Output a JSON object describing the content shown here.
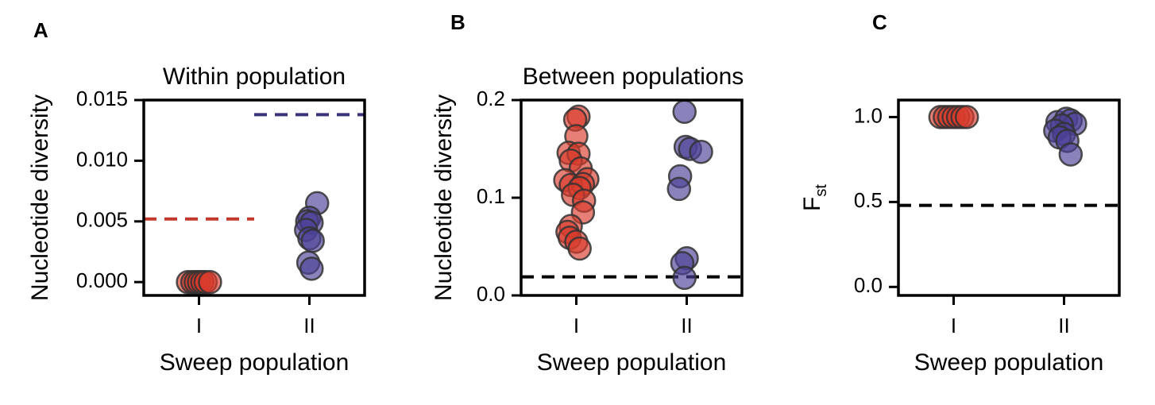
{
  "chart_data": [
    {
      "panel_label": "A",
      "type": "scatter",
      "title": "Within population",
      "xlabel": "Sweep population",
      "ylabel": "Nucleotide diversity",
      "categories": [
        "I",
        "II"
      ],
      "ylim": [
        -0.0011,
        0.015
      ],
      "yticks": [
        "0.000",
        "0.005",
        "0.010",
        "0.015"
      ],
      "ytick_values": [
        0.0,
        0.005,
        0.01,
        0.015
      ],
      "grid": false,
      "series": [
        {
          "category": "I",
          "color": "#d93a2b",
          "points": [
            {
              "dx": -0.1,
              "y": 0.0
            },
            {
              "dx": -0.06,
              "y": 0.0
            },
            {
              "dx": -0.03,
              "y": 0.0
            },
            {
              "dx": 0.0,
              "y": 0.0
            },
            {
              "dx": 0.03,
              "y": 0.0
            },
            {
              "dx": 0.06,
              "y": 0.0
            },
            {
              "dx": 0.1,
              "y": 0.0
            }
          ]
        },
        {
          "category": "II",
          "color": "#4b4196",
          "points": [
            {
              "dx": 0.07,
              "y": 0.0065
            },
            {
              "dx": 0.0,
              "y": 0.0053
            },
            {
              "dx": -0.02,
              "y": 0.005
            },
            {
              "dx": 0.02,
              "y": 0.0049
            },
            {
              "dx": -0.03,
              "y": 0.0043
            },
            {
              "dx": 0.0,
              "y": 0.0036
            },
            {
              "dx": 0.03,
              "y": 0.0034
            },
            {
              "dx": -0.01,
              "y": 0.0016
            },
            {
              "dx": 0.02,
              "y": 0.0011
            }
          ]
        }
      ],
      "reference_lines": [
        {
          "y": 0.0052,
          "x_from": 0.5,
          "x_to": 1.5,
          "color": "#c0392b",
          "style": "dashed"
        },
        {
          "y": 0.0138,
          "x_from": 1.5,
          "x_to": 2.5,
          "color": "#3b337a",
          "style": "dashed"
        }
      ]
    },
    {
      "panel_label": "B",
      "type": "scatter",
      "title": "Between populations",
      "xlabel": "Sweep population",
      "ylabel": "Nucleotide diversity",
      "categories": [
        "I",
        "II"
      ],
      "ylim": [
        0.0,
        0.2
      ],
      "yticks": [
        "0.0",
        "0.1",
        "0.2"
      ],
      "ytick_values": [
        0.0,
        0.1,
        0.2
      ],
      "grid": false,
      "series": [
        {
          "category": "I",
          "color": "#d93a2b",
          "points": [
            {
              "dx": 0.02,
              "y": 0.183
            },
            {
              "dx": -0.01,
              "y": 0.18
            },
            {
              "dx": 0.0,
              "y": 0.163
            },
            {
              "dx": -0.07,
              "y": 0.146
            },
            {
              "dx": 0.02,
              "y": 0.145
            },
            {
              "dx": -0.05,
              "y": 0.138
            },
            {
              "dx": 0.04,
              "y": 0.13
            },
            {
              "dx": -0.1,
              "y": 0.118
            },
            {
              "dx": 0.1,
              "y": 0.119
            },
            {
              "dx": -0.05,
              "y": 0.113
            },
            {
              "dx": 0.06,
              "y": 0.114
            },
            {
              "dx": 0.03,
              "y": 0.11
            },
            {
              "dx": -0.03,
              "y": 0.103
            },
            {
              "dx": 0.07,
              "y": 0.097
            },
            {
              "dx": 0.06,
              "y": 0.085
            },
            {
              "dx": -0.05,
              "y": 0.071
            },
            {
              "dx": -0.08,
              "y": 0.065
            },
            {
              "dx": -0.06,
              "y": 0.059
            },
            {
              "dx": 0.0,
              "y": 0.055
            },
            {
              "dx": 0.03,
              "y": 0.048
            }
          ]
        },
        {
          "category": "II",
          "color": "#4b4196",
          "points": [
            {
              "dx": -0.02,
              "y": 0.188
            },
            {
              "dx": -0.01,
              "y": 0.152
            },
            {
              "dx": 0.03,
              "y": 0.15
            },
            {
              "dx": 0.13,
              "y": 0.147
            },
            {
              "dx": -0.06,
              "y": 0.122
            },
            {
              "dx": -0.07,
              "y": 0.109
            },
            {
              "dx": 0.0,
              "y": 0.038
            },
            {
              "dx": -0.04,
              "y": 0.033
            },
            {
              "dx": -0.02,
              "y": 0.018
            }
          ]
        }
      ],
      "reference_lines": [
        {
          "y": 0.019,
          "x_from": 0.5,
          "x_to": 2.5,
          "color": "#000000",
          "style": "dashed"
        }
      ]
    },
    {
      "panel_label": "C",
      "type": "scatter",
      "title": "",
      "xlabel": "Sweep population",
      "ylabel": "F",
      "ylabel_subscript": "st",
      "categories": [
        "I",
        "II"
      ],
      "ylim": [
        -0.05,
        1.1
      ],
      "yticks": [
        "0.0",
        "0.5",
        "1.0"
      ],
      "ytick_values": [
        0.0,
        0.5,
        1.0
      ],
      "grid": false,
      "series": [
        {
          "category": "I",
          "color": "#d93a2b",
          "points": [
            {
              "dx": -0.12,
              "y": 1.0
            },
            {
              "dx": -0.08,
              "y": 1.0
            },
            {
              "dx": -0.04,
              "y": 1.0
            },
            {
              "dx": 0.0,
              "y": 1.0
            },
            {
              "dx": 0.04,
              "y": 1.0
            },
            {
              "dx": 0.08,
              "y": 1.0
            },
            {
              "dx": 0.12,
              "y": 1.0
            }
          ]
        },
        {
          "category": "II",
          "color": "#4b4196",
          "points": [
            {
              "dx": -0.06,
              "y": 0.97
            },
            {
              "dx": 0.02,
              "y": 0.99
            },
            {
              "dx": 0.06,
              "y": 0.98
            },
            {
              "dx": 0.1,
              "y": 0.96
            },
            {
              "dx": -0.02,
              "y": 0.95
            },
            {
              "dx": -0.08,
              "y": 0.92
            },
            {
              "dx": 0.0,
              "y": 0.9
            },
            {
              "dx": -0.04,
              "y": 0.88
            },
            {
              "dx": 0.03,
              "y": 0.86
            },
            {
              "dx": 0.06,
              "y": 0.78
            }
          ]
        }
      ],
      "reference_lines": [
        {
          "y": 0.48,
          "x_from": 0.5,
          "x_to": 2.5,
          "color": "#000000",
          "style": "dashed"
        }
      ]
    }
  ]
}
